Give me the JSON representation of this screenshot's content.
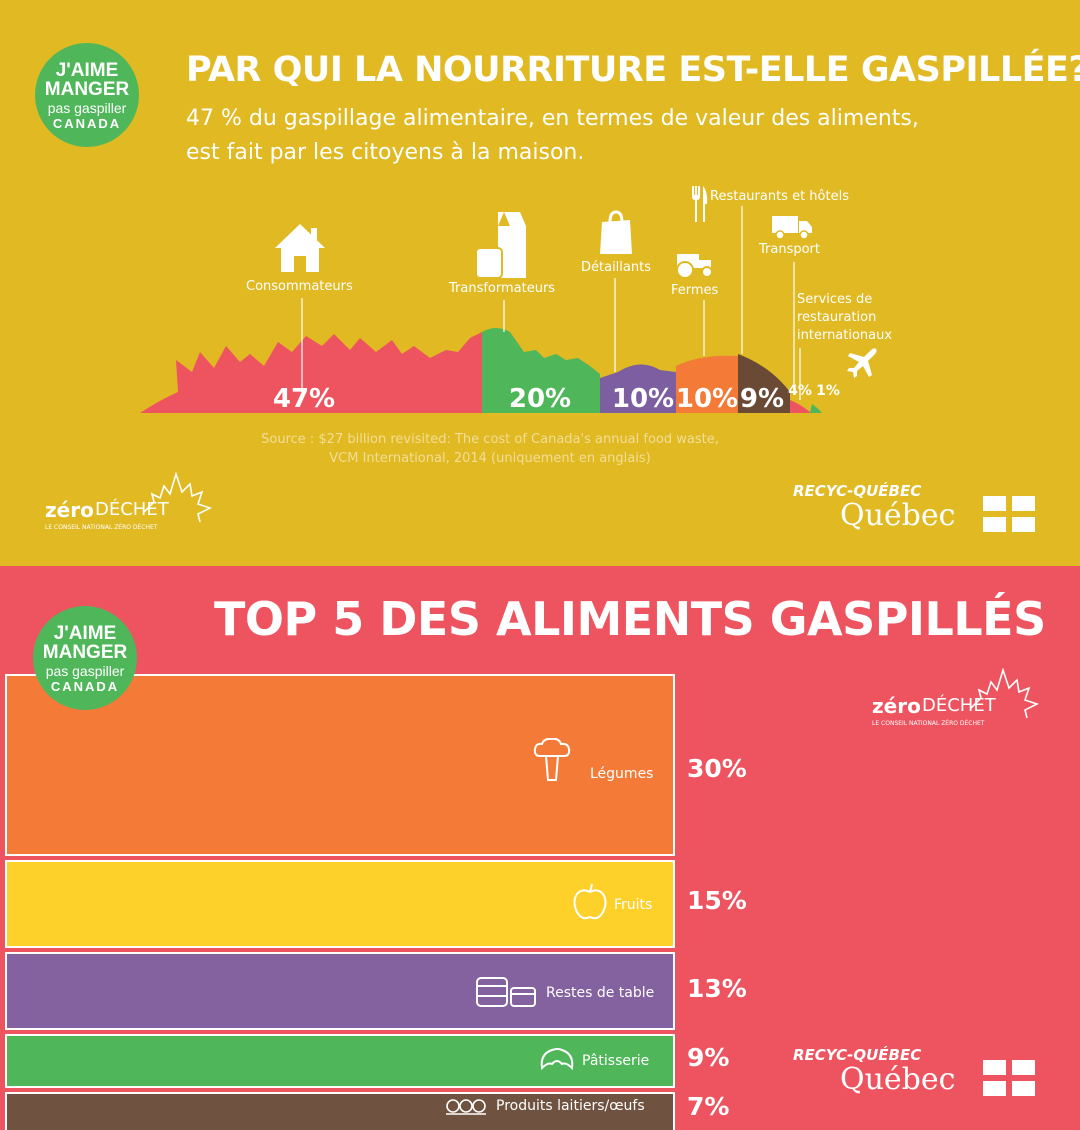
{
  "colors": {
    "top_background": "#e0b923",
    "bottom_background": "#ee5460",
    "badge": "#4fb75a",
    "consommateurs": "#ee5460",
    "transformateurs": "#4fb75a",
    "detaillants": "#7d5ea0",
    "fermes": "#f47a38",
    "restaurants_hotels": "#6a4a34",
    "transport": "#ee5460",
    "services_restauration": "#4fb75a",
    "legumes": "#f47a38",
    "fruits": "#fdd02a",
    "restes_de_table": "#84619f",
    "patisserie": "#4fb75a",
    "produits_laitiers": "#6f5240"
  },
  "badge": {
    "line1": "J'AIME",
    "line2": "MANGER",
    "line3": "pas gaspiller",
    "line4": "CANADA"
  },
  "top": {
    "title": "PAR QUI LA NOURRITURE EST-ELLE GASPILLÉE?",
    "subtitle_line1": "47 % du gaspillage alimentaire, en termes de valeur des aliments,",
    "subtitle_line2": "est fait par les citoyens à la maison.",
    "source_line1": "Source : $27 billion revisited: The cost of Canada's annual food waste,",
    "source_line2": "VCM International, 2014 (uniquement en anglais)"
  },
  "bottom": {
    "title": "TOP 5 DES ALIMENTS GASPILLÉS"
  },
  "zero_dechet": {
    "brand_bold": "zéro",
    "brand_rest": "DÉCHET",
    "tagline": "LE CONSEIL NATIONAL ZÉRO DÉCHET"
  },
  "recyc": {
    "line1": "RECYC-QUÉBEC",
    "line2": "Québec"
  },
  "icons": {
    "consommateurs": "house-icon",
    "transformateurs": "milk-carton-icon",
    "detaillants": "shopping-bag-icon",
    "fermes": "tractor-icon",
    "restaurants_hotels": "fork-knife-icon",
    "transport": "truck-icon",
    "services_restauration": "airplane-icon",
    "legumes": "broccoli-icon",
    "fruits": "apple-icon",
    "restes_de_table": "containers-icon",
    "patisserie": "croissant-icon",
    "produits_laitiers": "eggs-icon"
  },
  "chart_data": [
    {
      "type": "area",
      "title": "PAR QUI LA NOURRITURE EST-ELLE GASPILLÉE?",
      "categories": [
        "Consommateurs",
        "Transformateurs",
        "Détaillants",
        "Fermes",
        "Restaurants et hôtels",
        "Transport",
        "Services de restauration internationaux"
      ],
      "values": [
        47,
        20,
        10,
        10,
        9,
        4,
        1
      ],
      "value_labels": [
        "47%",
        "20%",
        "10%",
        "10%",
        "9%",
        "4%",
        "1%"
      ],
      "unit": "%"
    },
    {
      "type": "bar",
      "title": "TOP 5 DES ALIMENTS GASPILLÉS",
      "categories": [
        "Légumes",
        "Fruits",
        "Restes de table",
        "Pâtisserie",
        "Produits laitiers/œufs"
      ],
      "values": [
        30,
        15,
        13,
        9,
        7
      ],
      "value_labels": [
        "30%",
        "15%",
        "13%",
        "9%",
        "7%"
      ],
      "unit": "%"
    }
  ]
}
